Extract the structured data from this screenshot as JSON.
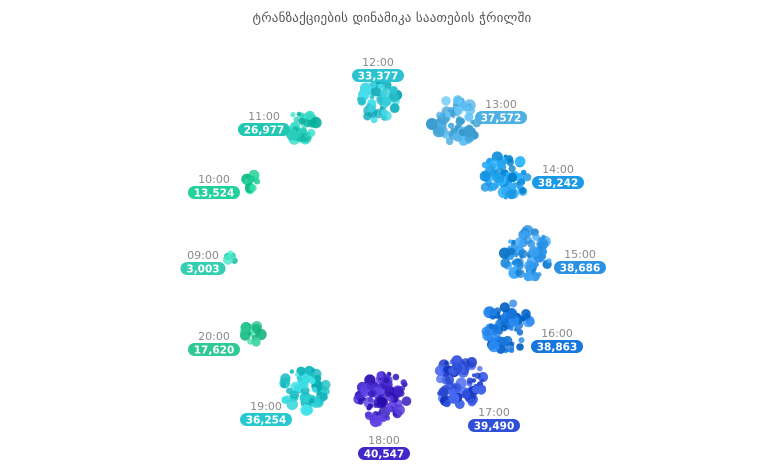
{
  "chart_data": {
    "type": "bubble-cluster-radial",
    "title": "ტრანზაქციების დინამიკა საათების ჭრილში",
    "points": [
      {
        "time": "12:00",
        "value": 33377,
        "value_label": "33,377",
        "color": "#2cc2cf"
      },
      {
        "time": "13:00",
        "value": 37572,
        "value_label": "37,572",
        "color": "#4fb0e3"
      },
      {
        "time": "14:00",
        "value": 38242,
        "value_label": "38,242",
        "color": "#1a9ae6"
      },
      {
        "time": "15:00",
        "value": 38686,
        "value_label": "38,686",
        "color": "#2a92e4"
      },
      {
        "time": "16:00",
        "value": 38863,
        "value_label": "38,863",
        "color": "#1877dc"
      },
      {
        "time": "17:00",
        "value": 39490,
        "value_label": "39,490",
        "color": "#2f4fd8"
      },
      {
        "time": "18:00",
        "value": 40547,
        "value_label": "40,547",
        "color": "#4327c9"
      },
      {
        "time": "19:00",
        "value": 36254,
        "value_label": "36,254",
        "color": "#27c9cf"
      },
      {
        "time": "20:00",
        "value": 17620,
        "value_label": "17,620",
        "color": "#2ec996"
      },
      {
        "time": "09:00",
        "value": 3003,
        "value_label": "3,003",
        "color": "#33cfb0"
      },
      {
        "time": "10:00",
        "value": 13524,
        "value_label": "13,524",
        "color": "#24d19a"
      },
      {
        "time": "11:00",
        "value": 26977,
        "value_label": "26,977",
        "color": "#22c7b3"
      }
    ]
  }
}
